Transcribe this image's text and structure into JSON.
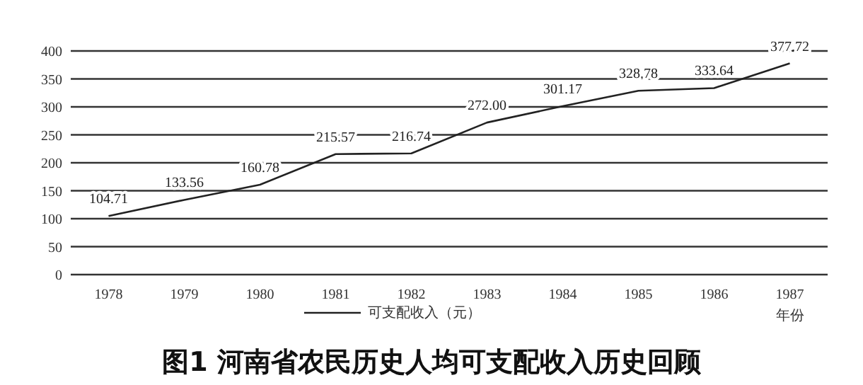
{
  "chart_data": {
    "type": "line",
    "title": "图1  河南省农民历史人均可支配收入历史回顾",
    "xlabel": "年份",
    "categories": [
      "1978",
      "1979",
      "1980",
      "1981",
      "1982",
      "1983",
      "1984",
      "1985",
      "1986",
      "1987"
    ],
    "series": [
      {
        "name": "可支配收入（元）",
        "color": "#222222",
        "values": [
          104.71,
          133.56,
          160.78,
          215.57,
          216.74,
          272.0,
          301.17,
          328.78,
          333.64,
          377.72
        ],
        "value_labels": [
          "104.71",
          "133.56",
          "160.78",
          "215.57",
          "216.74",
          "272.00",
          "301.17",
          "328.78",
          "333.64",
          "377.72"
        ]
      }
    ],
    "ylim": [
      0,
      400
    ],
    "yticks": [
      0,
      50,
      100,
      150,
      200,
      250,
      300,
      350,
      400
    ],
    "grid": "y",
    "legend": "bottom",
    "marker": "none",
    "line_style": "solid"
  }
}
